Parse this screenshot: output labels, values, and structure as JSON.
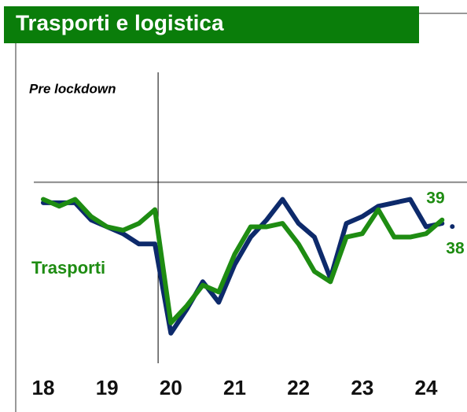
{
  "chart_data": {
    "type": "line",
    "title": "Trasporti e logistica",
    "annotation": "Pre lockdown",
    "categories": [
      "18",
      null,
      null,
      null,
      "19",
      null,
      null,
      null,
      "20",
      null,
      null,
      null,
      "21",
      null,
      null,
      null,
      "22",
      null,
      null,
      null,
      "23",
      null,
      null,
      null,
      "24",
      null
    ],
    "series": [
      {
        "color": "#0d2a6b",
        "values": [
          44,
          44,
          44,
          39,
          37,
          35,
          32,
          32,
          6,
          13,
          21,
          15,
          26,
          34,
          39,
          45,
          38,
          34,
          22,
          38,
          40,
          43,
          44,
          45,
          37,
          38
        ]
      },
      {
        "name": "Trasporti",
        "color": "#1e8c12",
        "values": [
          45,
          43,
          45,
          40,
          37,
          36,
          38,
          42,
          9,
          14,
          20,
          18,
          29,
          37,
          37,
          38,
          32,
          24,
          21,
          34,
          35,
          42,
          34,
          34,
          35,
          39
        ]
      }
    ],
    "ylim": [
      0,
      82
    ],
    "reference_line": 50,
    "event_x": 7.2
  }
}
